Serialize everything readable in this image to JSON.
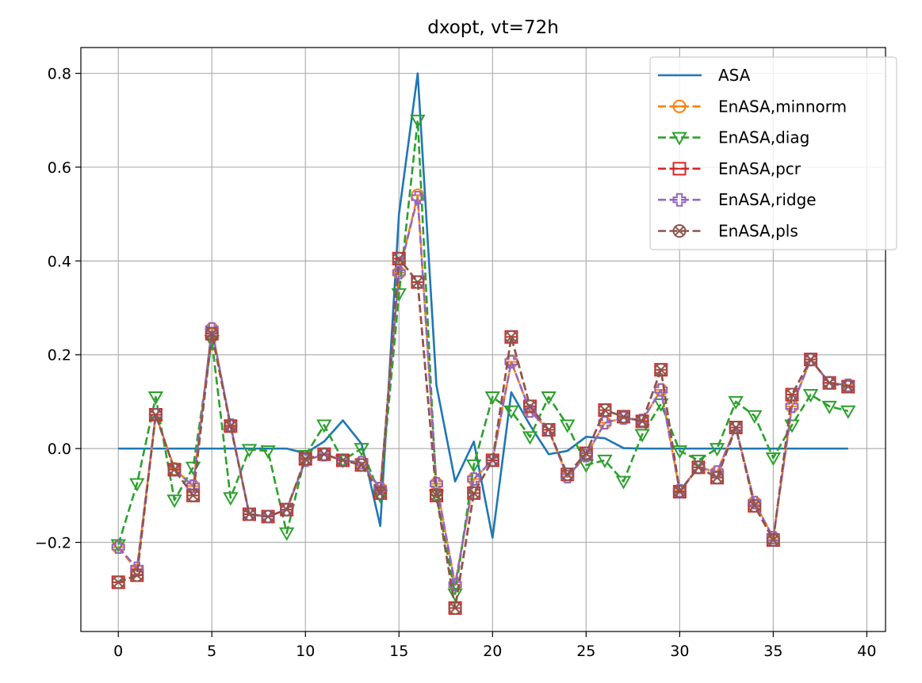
{
  "chart_data": {
    "type": "line",
    "title": "dxopt, vt=72h",
    "xlabel": "",
    "ylabel": "",
    "xlim": [
      -2,
      41
    ],
    "ylim": [
      -0.39,
      0.855
    ],
    "xticks": [
      0,
      5,
      10,
      15,
      20,
      25,
      30,
      35,
      40
    ],
    "xtick_labels": [
      "0",
      "5",
      "10",
      "15",
      "20",
      "25",
      "30",
      "35",
      "40"
    ],
    "yticks": [
      -0.2,
      0.0,
      0.2,
      0.4,
      0.6,
      0.8
    ],
    "ytick_labels": [
      "−0.2",
      "0.0",
      "0.2",
      "0.4",
      "0.6",
      "0.8"
    ],
    "grid": true,
    "legend_position": "top-right",
    "x": [
      0,
      1,
      2,
      3,
      4,
      5,
      6,
      7,
      8,
      9,
      10,
      11,
      12,
      13,
      14,
      15,
      16,
      17,
      18,
      19,
      20,
      21,
      22,
      23,
      24,
      25,
      26,
      27,
      28,
      29,
      30,
      31,
      32,
      33,
      34,
      35,
      36,
      37,
      38,
      39
    ],
    "series": [
      {
        "name": "ASA",
        "color": "#1f77b4",
        "style": "solid",
        "marker": "none",
        "values": [
          0,
          0,
          0,
          0,
          0,
          0,
          0,
          0,
          0,
          0,
          -0.01,
          0.015,
          0.06,
          0.01,
          -0.165,
          0.5,
          0.8,
          0.135,
          -0.07,
          0.015,
          -0.19,
          0.12,
          0.05,
          -0.012,
          -0.005,
          0.025,
          0.022,
          0.001,
          0,
          0,
          0,
          0,
          0,
          0,
          0,
          0,
          0,
          0,
          0,
          0
        ]
      },
      {
        "name": "EnASA,minnorm",
        "color": "#ff7f0e",
        "style": "dashed",
        "marker": "circle-minus",
        "values": [
          -0.21,
          -0.26,
          0.072,
          -0.043,
          -0.08,
          0.255,
          0.05,
          -0.14,
          -0.145,
          -0.13,
          -0.025,
          -0.013,
          -0.025,
          -0.03,
          -0.085,
          0.375,
          0.54,
          -0.075,
          -0.29,
          -0.065,
          -0.025,
          0.185,
          0.08,
          0.04,
          -0.06,
          -0.015,
          0.055,
          0.065,
          0.06,
          0.125,
          -0.09,
          -0.04,
          -0.05,
          0.045,
          -0.115,
          -0.19,
          0.09,
          0.19,
          0.14,
          0.135
        ]
      },
      {
        "name": "EnASA,diag",
        "color": "#2ca02c",
        "style": "dashed",
        "marker": "triangle-down",
        "values": [
          -0.205,
          -0.075,
          0.11,
          -0.11,
          -0.04,
          0.23,
          -0.105,
          -0.002,
          -0.005,
          -0.18,
          -0.015,
          0.05,
          -0.025,
          0,
          -0.1,
          0.33,
          0.7,
          -0.1,
          -0.31,
          -0.035,
          0.11,
          0.08,
          0.025,
          0.11,
          0.05,
          -0.035,
          -0.025,
          -0.07,
          0.03,
          0.095,
          -0.005,
          -0.025,
          0,
          0.1,
          0.07,
          -0.02,
          0.05,
          0.115,
          0.09,
          0.08
        ]
      },
      {
        "name": "EnASA,pcr",
        "color": "#d62728",
        "style": "dashed",
        "marker": "square-minus",
        "values": [
          -0.285,
          -0.27,
          0.072,
          -0.045,
          -0.1,
          0.245,
          0.048,
          -0.14,
          -0.145,
          -0.13,
          -0.022,
          -0.012,
          -0.025,
          -0.035,
          -0.095,
          0.405,
          0.355,
          -0.1,
          -0.34,
          -0.095,
          -0.025,
          0.238,
          0.09,
          0.04,
          -0.055,
          -0.01,
          0.082,
          0.068,
          0.058,
          0.168,
          -0.092,
          -0.04,
          -0.062,
          0.045,
          -0.122,
          -0.195,
          0.115,
          0.19,
          0.14,
          0.132
        ]
      },
      {
        "name": "EnASA,ridge",
        "color": "#9467bd",
        "style": "dashed",
        "marker": "plus",
        "values": [
          -0.21,
          -0.255,
          0.072,
          -0.045,
          -0.08,
          0.255,
          0.05,
          -0.14,
          -0.145,
          -0.13,
          -0.025,
          -0.013,
          -0.025,
          -0.03,
          -0.085,
          0.375,
          0.535,
          -0.075,
          -0.29,
          -0.065,
          -0.025,
          0.185,
          0.08,
          0.04,
          -0.06,
          -0.015,
          0.055,
          0.065,
          0.06,
          0.125,
          -0.09,
          -0.04,
          -0.05,
          0.045,
          -0.115,
          -0.19,
          0.09,
          0.19,
          0.14,
          0.135
        ]
      },
      {
        "name": "EnASA,pls",
        "color": "#8c564b",
        "style": "dashed",
        "marker": "circle-x",
        "values": [
          -0.285,
          -0.27,
          0.072,
          -0.045,
          -0.1,
          0.245,
          0.048,
          -0.14,
          -0.145,
          -0.13,
          -0.022,
          -0.012,
          -0.025,
          -0.035,
          -0.095,
          0.405,
          0.355,
          -0.1,
          -0.34,
          -0.095,
          -0.025,
          0.238,
          0.09,
          0.04,
          -0.055,
          -0.01,
          0.082,
          0.068,
          0.058,
          0.168,
          -0.092,
          -0.04,
          -0.062,
          0.045,
          -0.122,
          -0.195,
          0.115,
          0.19,
          0.14,
          0.132
        ]
      }
    ]
  }
}
